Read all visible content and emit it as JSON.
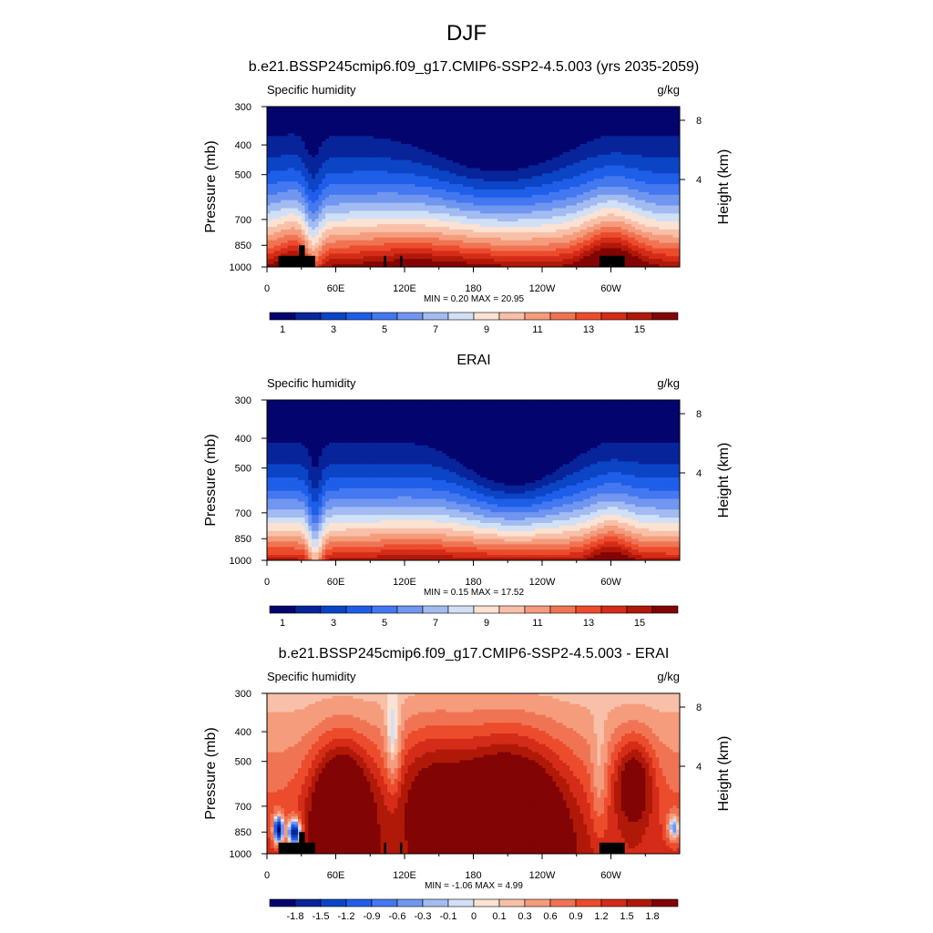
{
  "figure_title": "DJF",
  "chart_data": [
    {
      "type": "heatmap",
      "title": "b.e21.BSSP245cmip6.f09_g17.CMIP6-SSP2-4.5.003 (yrs 2035-2059)",
      "left_label": "Specific humidity",
      "right_label": "g/kg",
      "ylabel": "Pressure (mb)",
      "y2label": "Height (km)",
      "y_ticks": [
        "300",
        "400",
        "500",
        "700",
        "850",
        "1000"
      ],
      "y_tick_values": [
        300,
        400,
        500,
        700,
        850,
        1000
      ],
      "y2_ticks": [
        "8",
        "4"
      ],
      "y2_tick_values": [
        8,
        4
      ],
      "x_ticks": [
        "0",
        "60E",
        "120E",
        "180",
        "120W",
        "60W"
      ],
      "x_tick_values": [
        0,
        60,
        120,
        180,
        240,
        300
      ],
      "xlim": [
        0,
        360
      ],
      "ylim": [
        1000,
        300
      ],
      "y_scale": "log",
      "stats": "MIN =   0.20  MAX =  20.95",
      "colorbar_labels": [
        "1",
        "3",
        "5",
        "7",
        "9",
        "11",
        "13",
        "15"
      ],
      "colorbar_levels": [
        0,
        1,
        2,
        3,
        4,
        5,
        6,
        7,
        8,
        9,
        10,
        11,
        12,
        13,
        14,
        15
      ],
      "colorscale": "blue-white-red",
      "field": "model",
      "description_values": {
        "surface_max": 20.95,
        "top_min": 0.2
      },
      "topography_mask": true
    },
    {
      "type": "heatmap",
      "title": "ERAI",
      "left_label": "Specific humidity",
      "right_label": "g/kg",
      "ylabel": "Pressure (mb)",
      "y2label": "Height (km)",
      "y_ticks": [
        "300",
        "400",
        "500",
        "700",
        "850",
        "1000"
      ],
      "y_tick_values": [
        300,
        400,
        500,
        700,
        850,
        1000
      ],
      "y2_ticks": [
        "8",
        "4"
      ],
      "y2_tick_values": [
        8,
        4
      ],
      "x_ticks": [
        "0",
        "60E",
        "120E",
        "180",
        "120W",
        "60W"
      ],
      "x_tick_values": [
        0,
        60,
        120,
        180,
        240,
        300
      ],
      "xlim": [
        0,
        360
      ],
      "ylim": [
        1000,
        300
      ],
      "y_scale": "log",
      "stats": "MIN =   0.15  MAX =  17.52",
      "colorbar_labels": [
        "1",
        "3",
        "5",
        "7",
        "9",
        "11",
        "13",
        "15"
      ],
      "colorbar_levels": [
        0,
        1,
        2,
        3,
        4,
        5,
        6,
        7,
        8,
        9,
        10,
        11,
        12,
        13,
        14,
        15
      ],
      "colorscale": "blue-white-red",
      "field": "obs",
      "topography_mask": false
    },
    {
      "type": "heatmap",
      "title": "b.e21.BSSP245cmip6.f09_g17.CMIP6-SSP2-4.5.003 - ERAI",
      "left_label": "Specific humidity",
      "right_label": "g/kg",
      "ylabel": "Pressure (mb)",
      "y2label": "Height (km)",
      "y_ticks": [
        "300",
        "400",
        "500",
        "700",
        "850",
        "1000"
      ],
      "y_tick_values": [
        300,
        400,
        500,
        700,
        850,
        1000
      ],
      "y2_ticks": [
        "8",
        "4"
      ],
      "y2_tick_values": [
        8,
        4
      ],
      "x_ticks": [
        "0",
        "60E",
        "120E",
        "180",
        "120W",
        "60W"
      ],
      "x_tick_values": [
        0,
        60,
        120,
        180,
        240,
        300
      ],
      "xlim": [
        0,
        360
      ],
      "ylim": [
        1000,
        300
      ],
      "y_scale": "log",
      "stats": "MIN =  -1.06  MAX =   4.99",
      "colorbar_labels": [
        "-1.8",
        "-1.5",
        "-1.2",
        "-0.9",
        "-0.6",
        "-0.3",
        "-0.1",
        "0",
        "0.1",
        "0.3",
        "0.6",
        "0.9",
        "1.2",
        "1.5",
        "1.8"
      ],
      "colorbar_levels": [
        -2.0,
        -1.8,
        -1.5,
        -1.2,
        -0.9,
        -0.6,
        -0.3,
        -0.1,
        0,
        0.1,
        0.3,
        0.6,
        0.9,
        1.2,
        1.5,
        1.8
      ],
      "colorscale": "blue-white-red",
      "field": "diff",
      "topography_mask": true
    }
  ],
  "colors": {
    "palette": [
      "#04046e",
      "#08249a",
      "#0c44c6",
      "#1e5ee8",
      "#4478f0",
      "#7096f0",
      "#a2bcf2",
      "#d2e0f6",
      "#fbe2d2",
      "#f8c0a8",
      "#f49c7c",
      "#f07454",
      "#ec4c2c",
      "#d42c18",
      "#b01808",
      "#820404"
    ],
    "topography": "#000000"
  }
}
